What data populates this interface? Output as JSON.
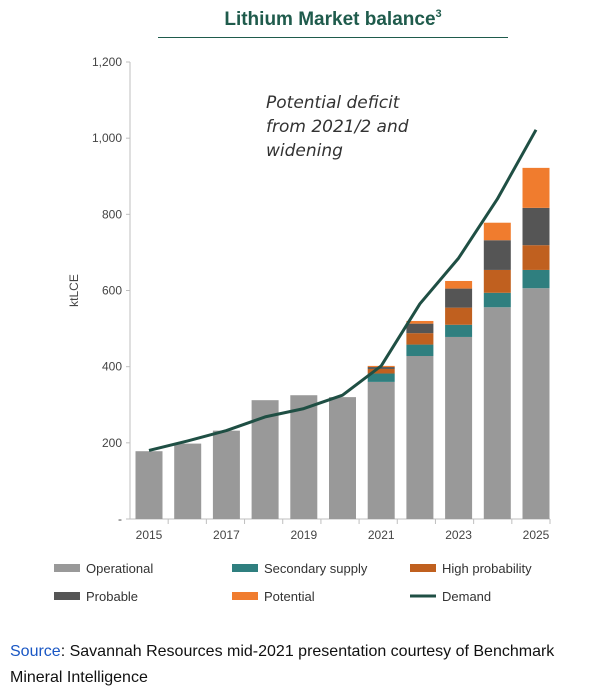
{
  "page": {
    "source_label": "Source",
    "source_text": ": Savannah Resources mid-2021 presentation courtesy of Benchmark Mineral Intelligence"
  },
  "chart_data": {
    "type": "bar",
    "title": "Lithium Market balance",
    "title_superscript": "3",
    "ylabel": "ktLCE",
    "xlabel": "",
    "ylim": [
      0,
      1200
    ],
    "y_ticks": [
      {
        "value": 0,
        "label": "-"
      },
      {
        "value": 200,
        "label": "200"
      },
      {
        "value": 400,
        "label": "400"
      },
      {
        "value": 600,
        "label": "600"
      },
      {
        "value": 800,
        "label": "800"
      },
      {
        "value": 1000,
        "label": "1,000"
      },
      {
        "value": 1200,
        "label": "1,200"
      }
    ],
    "categories": [
      "2015",
      "2016",
      "2017",
      "2018",
      "2019",
      "2020",
      "2021",
      "2022",
      "2023",
      "2024",
      "2025"
    ],
    "x_tick_labels": [
      "2015",
      "",
      "2017",
      "",
      "2019",
      "",
      "2021",
      "",
      "2023",
      "",
      "2025"
    ],
    "stacked": true,
    "series": [
      {
        "name": "Operational",
        "color": "#999999",
        "values": [
          178,
          198,
          232,
          312,
          325,
          320,
          360,
          428,
          478,
          556,
          606
        ]
      },
      {
        "name": "Secondary supply",
        "color": "#2f7f7f",
        "values": [
          0,
          0,
          0,
          0,
          0,
          0,
          22,
          30,
          32,
          38,
          48
        ]
      },
      {
        "name": "High probability",
        "color": "#c0601f",
        "values": [
          0,
          0,
          0,
          0,
          0,
          0,
          12,
          30,
          45,
          60,
          65
        ]
      },
      {
        "name": "Probable",
        "color": "#555555",
        "values": [
          0,
          0,
          0,
          0,
          0,
          0,
          5,
          25,
          50,
          78,
          98
        ]
      },
      {
        "name": "Potential",
        "color": "#f07c2e",
        "values": [
          0,
          0,
          0,
          0,
          0,
          0,
          3,
          7,
          20,
          46,
          105
        ]
      }
    ],
    "line_series": {
      "name": "Demand",
      "color": "#1f4f44",
      "values": [
        180,
        205,
        232,
        268,
        290,
        325,
        402,
        565,
        685,
        840,
        1022
      ]
    },
    "annotation": [
      "Potential deficit",
      "from 2021/2 and",
      "widening"
    ],
    "legend": [
      {
        "name": "Operational",
        "color": "#999999",
        "kind": "box"
      },
      {
        "name": "Secondary supply",
        "color": "#2f7f7f",
        "kind": "box"
      },
      {
        "name": "High probability",
        "color": "#c0601f",
        "kind": "box"
      },
      {
        "name": "Probable",
        "color": "#555555",
        "kind": "box"
      },
      {
        "name": "Potential",
        "color": "#f07c2e",
        "kind": "box"
      },
      {
        "name": "Demand",
        "color": "#1f4f44",
        "kind": "line"
      }
    ],
    "legend_position": "bottom",
    "grid": false
  }
}
